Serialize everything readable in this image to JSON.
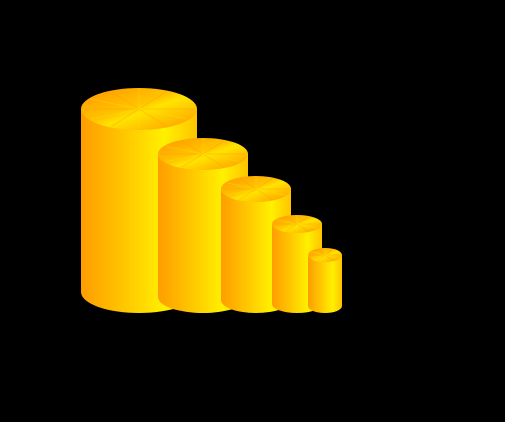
{
  "scene": {
    "background": "#000000",
    "subject": "cylinders",
    "cylinder_count": 5,
    "colors": {
      "body_edge": "#ff9d00",
      "body_mid": "#ffc400",
      "body_highlight": "#fff000",
      "top_dark": "#ff9500",
      "top_light": "#ffe400"
    }
  }
}
